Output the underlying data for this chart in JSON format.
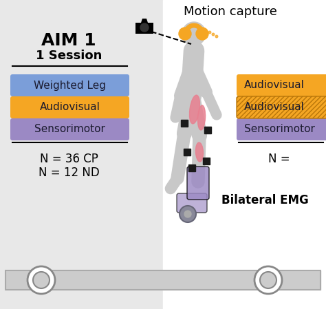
{
  "fig_width": 4.74,
  "fig_height": 4.49,
  "bg_left": "#e8e8e8",
  "bg_right": "#ffffff",
  "aim_title": "AIM 1",
  "aim_subtitle": "1 Session",
  "motion_capture_label": "Motion capture",
  "bilateral_emg_label": "Bilateral EMG",
  "left_boxes": [
    {
      "label": "Weighted Leg",
      "color": "#7b9ed9",
      "text_color": "#1a1a2e"
    },
    {
      "label": "Audiovisual",
      "color": "#f5a623",
      "text_color": "#1a1a2e"
    },
    {
      "label": "Sensorimotor",
      "color": "#9b89c4",
      "text_color": "#1a1a2e"
    }
  ],
  "right_boxes": [
    {
      "label": "Audiovisual",
      "color": "#f5a623",
      "text_color": "#1a1a2e",
      "hatched": false
    },
    {
      "label": "Audiovisual",
      "color": "#f5a623",
      "text_color": "#1a1a2e",
      "hatched": true
    },
    {
      "label": "Sensorimotor",
      "color": "#9b89c4",
      "text_color": "#1a1a2e",
      "hatched": false
    }
  ],
  "n_left_line1": "N = 36 CP",
  "n_left_line2": "N = 12 ND",
  "n_right": "N =",
  "body_color": "#c8c8c8",
  "headphones_color": "#f5a623",
  "muscle_color": "#e88090",
  "brace_color": "#9b89c4",
  "sensor_color": "#1a1a1a",
  "treadmill_color": "#cccccc",
  "treadmill_roller_color": "#888888"
}
